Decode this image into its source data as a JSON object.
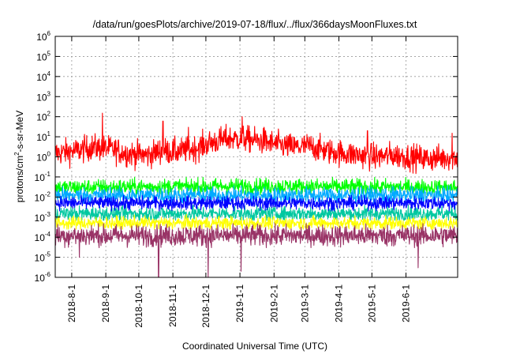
{
  "chart_data": {
    "type": "line",
    "title": "/data/run/goesPlots/archive/2019-07-18/flux/../flux/366daysMoonFluxes.txt",
    "xlabel": "Coordinated Universal Time (UTC)",
    "ylabel": {
      "before": "protons/cm",
      "sup": "2",
      "after": "-s-sr-MeV"
    },
    "yscale": "log",
    "ylim": [
      1e-06,
      1000000.0
    ],
    "yticks": [
      {
        "value": 1e-06,
        "base": "10",
        "exp": "-6"
      },
      {
        "value": 1e-05,
        "base": "10",
        "exp": "-5"
      },
      {
        "value": 0.0001,
        "base": "10",
        "exp": "-4"
      },
      {
        "value": 0.001,
        "base": "10",
        "exp": "-3"
      },
      {
        "value": 0.01,
        "base": "10",
        "exp": "-2"
      },
      {
        "value": 0.1,
        "base": "10",
        "exp": "-1"
      },
      {
        "value": 1,
        "base": "10",
        "exp": "0"
      },
      {
        "value": 10,
        "base": "10",
        "exp": "1"
      },
      {
        "value": 100,
        "base": "10",
        "exp": "2"
      },
      {
        "value": 1000,
        "base": "10",
        "exp": "3"
      },
      {
        "value": 10000,
        "base": "10",
        "exp": "4"
      },
      {
        "value": 100000,
        "base": "10",
        "exp": "5"
      },
      {
        "value": 1000000,
        "base": "10",
        "exp": "6"
      }
    ],
    "xlim": [
      "2018-07-17",
      "2019-07-18"
    ],
    "xticks": [
      "2018-8-1",
      "2018-9-1",
      "2018-10-1",
      "2018-11-1",
      "2018-12-1",
      "2019-1-1",
      "2019-2-1",
      "2019-3-1",
      "2019-4-1",
      "2019-5-1",
      "2019-6-1"
    ],
    "grid": true,
    "legend": "none",
    "series": [
      {
        "color": "#ff0000",
        "typical": [
          [
            "2018-07-17",
            1.5
          ],
          [
            "2018-08-05",
            2.0
          ],
          [
            "2018-08-20",
            3.0
          ],
          [
            "2018-09-05",
            2.5
          ],
          [
            "2018-09-20",
            1.5
          ],
          [
            "2018-10-10",
            1.2
          ],
          [
            "2018-10-20",
            2.0
          ],
          [
            "2018-11-05",
            1.8
          ],
          [
            "2018-11-20",
            2.5
          ],
          [
            "2018-12-05",
            5.0
          ],
          [
            "2018-12-20",
            8.0
          ],
          [
            "2019-01-05",
            8.0
          ],
          [
            "2019-01-20",
            6.0
          ],
          [
            "2019-02-05",
            4.0
          ],
          [
            "2019-02-20",
            3.0
          ],
          [
            "2019-03-05",
            3.5
          ],
          [
            "2019-03-20",
            2.0
          ],
          [
            "2019-04-05",
            1.5
          ],
          [
            "2019-04-20",
            1.2
          ],
          [
            "2019-05-05",
            1.0
          ],
          [
            "2019-05-20",
            1.2
          ],
          [
            "2019-06-05",
            1.0
          ],
          [
            "2019-06-20",
            0.8
          ],
          [
            "2019-07-18",
            1.0
          ]
        ],
        "low": 0.1,
        "spikes": [
          [
            "2018-08-29",
            150
          ],
          [
            "2018-10-23",
            60
          ],
          [
            "2018-11-15",
            30
          ],
          [
            "2019-01-03",
            100
          ],
          [
            "2019-01-23",
            30
          ],
          [
            "2019-04-27",
            20
          ],
          [
            "2019-07-13",
            15
          ]
        ]
      },
      {
        "color": "#00ff00",
        "typical": [
          [
            "2018-07-17",
            0.03
          ],
          [
            "2019-01-01",
            0.035
          ],
          [
            "2019-07-18",
            0.03
          ]
        ],
        "high": 0.08,
        "low": 0.012
      },
      {
        "color": "#00aaff",
        "typical": [
          [
            "2018-07-17",
            0.012
          ],
          [
            "2019-07-18",
            0.012
          ]
        ],
        "high": 0.03,
        "low": 0.004
      },
      {
        "color": "#00c8a0",
        "typical": [
          [
            "2018-07-17",
            0.0015
          ],
          [
            "2019-07-18",
            0.0015
          ]
        ],
        "high": 0.004,
        "low": 0.0007
      },
      {
        "color": "#0000ff",
        "typical": [
          [
            "2018-07-17",
            0.005
          ],
          [
            "2019-07-18",
            0.005
          ]
        ],
        "high": 0.01,
        "low": 0.002
      },
      {
        "color": "#ffff00",
        "typical": [
          [
            "2018-07-17",
            0.0005
          ],
          [
            "2019-07-18",
            0.0005
          ]
        ],
        "high": 0.0012,
        "low": 0.00025
      },
      {
        "color": "#993366",
        "typical": [
          [
            "2018-07-17",
            0.00012
          ],
          [
            "2019-07-18",
            0.00012
          ]
        ],
        "high": 0.0004,
        "low": 3e-05,
        "dips": [
          [
            "2018-08-08",
            1e-05
          ],
          [
            "2018-10-19",
            1e-06
          ],
          [
            "2018-12-03",
            1e-06
          ],
          [
            "2019-01-02",
            2e-06
          ],
          [
            "2019-06-12",
            3e-06
          ]
        ]
      }
    ]
  }
}
